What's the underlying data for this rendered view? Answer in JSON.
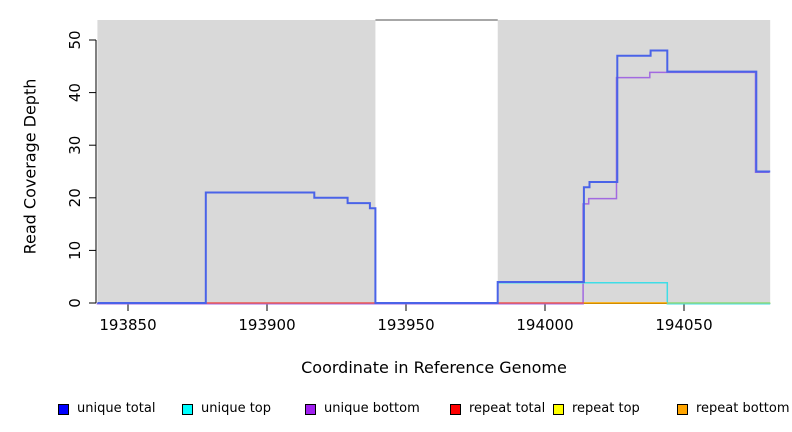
{
  "figure": {
    "title": "",
    "background_color": "#ffffff",
    "panel_shade_color": "#d9d9d9"
  },
  "chart_data": {
    "type": "line",
    "step": true,
    "title": "",
    "xlabel": "Coordinate in Reference Genome",
    "ylabel": "Read Coverage Depth",
    "xlim": [
      193839,
      194081
    ],
    "ylim": [
      0,
      54
    ],
    "x_ticks": [
      193850,
      193900,
      193950,
      194000,
      194050
    ],
    "y_ticks": [
      0,
      10,
      20,
      30,
      40,
      50
    ],
    "grid": false,
    "legend_position": "bottom-horizontal",
    "shaded_regions": [
      {
        "from": 193839,
        "to": 193939,
        "color": "#d9d9d9"
      },
      {
        "from": 193983,
        "to": 194081,
        "color": "#d9d9d9"
      }
    ],
    "masked_gap": {
      "from": 193939,
      "to": 193983,
      "top_line_color": "#8a8a8a"
    },
    "series": [
      {
        "name": "unique total",
        "color": "#4a63e8",
        "legend_color": "#0000ff",
        "steps": [
          [
            193839,
            193878,
            0
          ],
          [
            193878,
            193917,
            21
          ],
          [
            193917,
            193929,
            20
          ],
          [
            193929,
            193937,
            19
          ],
          [
            193937,
            193939,
            18
          ],
          [
            193939,
            193983,
            0
          ],
          [
            193983,
            194014,
            4
          ],
          [
            194014,
            194016,
            22
          ],
          [
            194016,
            194026,
            23
          ],
          [
            194026,
            194038,
            47
          ],
          [
            194038,
            194044,
            48
          ],
          [
            194044,
            194076,
            44
          ],
          [
            194076,
            194081,
            25
          ]
        ]
      },
      {
        "name": "unique top",
        "color": "#3fdde6",
        "legend_color": "#00ffff",
        "steps": [
          [
            193983,
            194044,
            4
          ],
          [
            194044,
            194081,
            0
          ]
        ]
      },
      {
        "name": "unique bottom",
        "color": "#a26ae0",
        "legend_color": "#a020f0",
        "steps": [
          [
            193839,
            194014,
            0
          ],
          [
            194014,
            194016,
            19
          ],
          [
            194016,
            194026,
            20
          ],
          [
            194026,
            194038,
            43
          ],
          [
            194038,
            194076,
            44
          ],
          [
            194076,
            194081,
            25
          ]
        ]
      },
      {
        "name": "repeat total",
        "color": "#e85560",
        "legend_color": "#ff0000",
        "steps": [
          [
            193878,
            193939,
            0
          ],
          [
            193983,
            194014,
            0
          ]
        ]
      },
      {
        "name": "repeat top",
        "color": "#ffff00",
        "legend_color": "#ffff00",
        "steps": [
          [
            193839,
            194081,
            0
          ]
        ]
      },
      {
        "name": "repeat bottom",
        "color": "#ffa500",
        "legend_color": "#ffa500",
        "steps": [
          [
            194014,
            194044,
            0
          ]
        ]
      }
    ],
    "extra_zero_segments": [
      {
        "from": 194044,
        "to": 194081,
        "color": "#8ad88a"
      }
    ]
  },
  "legend": {
    "items": [
      {
        "label": "unique total",
        "color": "#0000ff"
      },
      {
        "label": "unique top",
        "color": "#00ffff"
      },
      {
        "label": "unique bottom",
        "color": "#a020f0"
      },
      {
        "label": "repeat total",
        "color": "#ff0000"
      },
      {
        "label": "repeat top",
        "color": "#ffff00"
      },
      {
        "label": "repeat bottom",
        "color": "#ffa500"
      }
    ]
  }
}
